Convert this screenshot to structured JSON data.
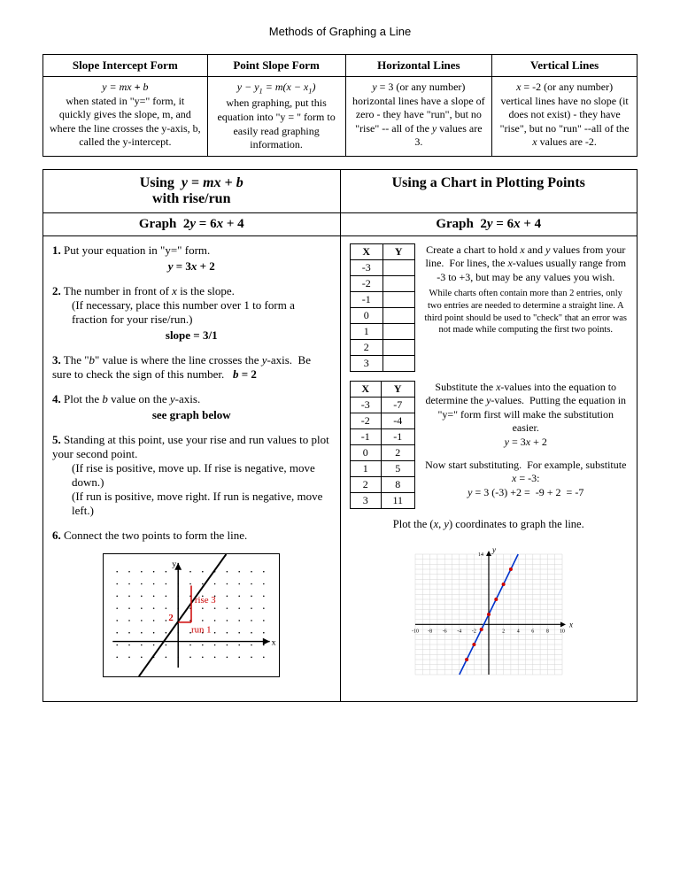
{
  "title": "Methods of Graphing a Line",
  "top_table": {
    "headers": [
      "Slope Intercept Form",
      "Point Slope Form",
      "Horizontal Lines",
      "Vertical Lines"
    ],
    "cells": {
      "c0_eq": "y = mx + b",
      "c0_txt": "when stated in \"y=\" form, it quickly gives the slope, m, and where the line crosses the y-axis, b, called the y-intercept.",
      "c1_eq": "y − y₁ = m(x − x₁)",
      "c1_txt": "when graphing, put this equation into \"y = \" form to easily read graphing information.",
      "c2_eq": "y = 3 (or any number)",
      "c2_txt": "horizontal lines have a slope of zero - they have \"run\", but no \"rise\" -- all of the y values are 3.",
      "c3_eq": "x = -2 (or any number)",
      "c3_txt": "vertical lines have no slope (it does not exist) - they have \"rise\", but no \"run\" --all of the x values are -2."
    }
  },
  "left": {
    "title_l1": "Using  y = mx + b",
    "title_l2": "with rise/run",
    "graph_title": "Graph  2y = 6x + 4",
    "s1": "Put your equation in \"y=\" form.",
    "s1_eq": "y = 3x + 2",
    "s2": "The number in front of x is the slope.",
    "s2b": "(If necessary, place this number over 1 to form a fraction for your rise/run.)",
    "s2_eq": "slope = 3/1",
    "s3": "The \"b\" value is where the line crosses the y-axis.  Be sure to check the sign of this number.",
    "s3_eq": "b = 2",
    "s4": "Plot the b value on the y-axis.",
    "s4_eq": "see graph below",
    "s5": "Standing at this point, use your rise and run values to plot your second point.",
    "s5b": "(If rise is positive, move up.  If rise is negative, move down.)",
    "s5c": "(If run is positive, move right.  If run is negative, move left.)",
    "s6": "Connect the two points to form the line.",
    "diagram": {
      "rise_label": "rise 3",
      "run_label": "run 1",
      "b_label": "2",
      "line_color": "#000000",
      "rise_run_color": "#cc0000"
    }
  },
  "right": {
    "title": "Using a Chart  in Plotting Points",
    "graph_title": "Graph  2y = 6x + 4",
    "table1": {
      "xh": "X",
      "yh": "Y",
      "x": [
        "-3",
        "-2",
        "-1",
        "0",
        "1",
        "2",
        "3"
      ],
      "y": [
        "",
        "",
        "",
        "",
        "",
        "",
        ""
      ]
    },
    "txt1": "Create a chart to hold x and y values from your line.  For lines, the x-values usually range from -3 to +3, but may be any values you wish.",
    "txt1b": "While charts often contain more than 2 entries, only two entries are needed to determine a straight line.  A third point should be used to \"check\" that an error was not made while computing the first two points.",
    "table2": {
      "xh": "X",
      "yh": "Y",
      "x": [
        "-3",
        "-2",
        "-1",
        "0",
        "1",
        "2",
        "3"
      ],
      "y": [
        "-7",
        "-4",
        "-1",
        "2",
        "5",
        "8",
        "11"
      ]
    },
    "txt2": "Substitute the x-values into the equation to determine the y-values.  Putting the equation in \"y=\" form first will make the substitution easier.",
    "txt2_eq": "y = 3x + 2",
    "txt3": "Now start substituting.  For example, substitute x = -3:",
    "txt3_eq": "y = 3 (-3) +2 =  -9 + 2  = -7",
    "plot_caption": "Plot the (x, y) coordinates to graph the line.",
    "chart": {
      "xmin": -10,
      "xmax": 10,
      "ymin": -10,
      "ymax": 14,
      "grid_color": "#d4d4d4",
      "axis_color": "#000000",
      "line_color": "#0033cc",
      "point_color": "#cc0000",
      "xticks": [
        -10,
        -8,
        -6,
        -4,
        -2,
        2,
        4,
        6,
        8,
        10
      ],
      "points": [
        [
          -3,
          -7
        ],
        [
          -2,
          -4
        ],
        [
          -1,
          -1
        ],
        [
          0,
          2
        ],
        [
          1,
          5
        ],
        [
          2,
          8
        ],
        [
          3,
          11
        ]
      ],
      "x_label": "x",
      "y_label": "y"
    }
  }
}
